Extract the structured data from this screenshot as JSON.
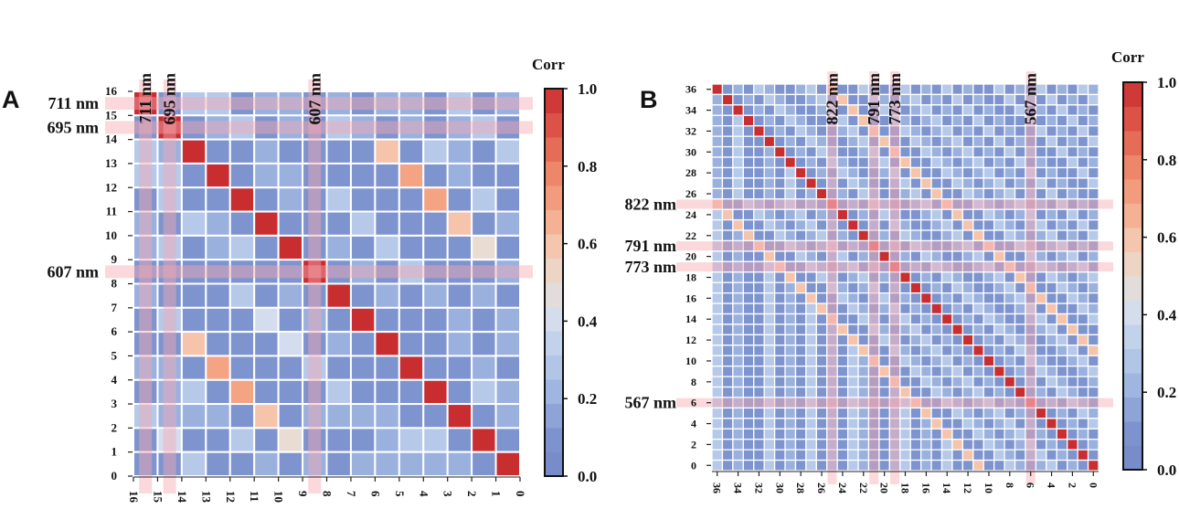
{
  "chart_data": [
    {
      "type": "heatmap",
      "panel_label": "A",
      "encoding": "digit = corr x 10, X = 1.0",
      "size": 16,
      "x_ticks": [
        "16",
        "15",
        "14",
        "13",
        "12",
        "11",
        "10",
        "9",
        "8",
        "7",
        "6",
        "5",
        "4",
        "3",
        "2",
        "1",
        "0"
      ],
      "y_ticks": [
        "0",
        "1",
        "2",
        "3",
        "4",
        "5",
        "6",
        "7",
        "8",
        "9",
        "10",
        "11",
        "12",
        "13",
        "14",
        "15",
        "16"
      ],
      "highlight_index": [
        0,
        1,
        7
      ],
      "highlight_labels": [
        "711 nm",
        "695 nm",
        "607 nm"
      ],
      "rows": [
        "X133122121221312",
        "1X12312132121231",
        "32X1121111613213",
        "331X122111171211",
        "1311X12131117131",
        "21321X1113111612",
        "231231X121311151",
        "1111111X12131112",
        "21113121X1212121",
        "131114121X111212",
        "1161114121X11212",
        "22171113111X1121",
        "123171113111X132",
        "3222161222211X12",
        "14113151112331X1",
        "113112121222221X"
      ],
      "colorbar": {
        "title": "Corr",
        "ticks": [
          "0.0",
          "0.2",
          "0.4",
          "0.6",
          "0.8",
          "1.0"
        ],
        "range": [
          0,
          1
        ]
      }
    },
    {
      "type": "heatmap",
      "panel_label": "B",
      "encoding": "digit = corr x 10, X = 1.0",
      "size": 37,
      "x_ticks": [
        "36",
        "34",
        "32",
        "30",
        "28",
        "26",
        "24",
        "22",
        "20",
        "18",
        "16",
        "14",
        "12",
        "10",
        "8",
        "6",
        "4",
        "2",
        "0"
      ],
      "y_ticks": [
        "0",
        "2",
        "4",
        "6",
        "8",
        "10",
        "12",
        "14",
        "16",
        "18",
        "20",
        "22",
        "24",
        "26",
        "28",
        "30",
        "32",
        "34",
        "36"
      ],
      "highlight_index": [
        11,
        15,
        17,
        30
      ],
      "highlight_labels": [
        "822 nm",
        "791 nm",
        "773 nm",
        "567 nm"
      ],
      "rows": [
        "X121321123161132123121312113121312132",
        "2X12132112316113212312131211312131213",
        "21X1213211231611321231213121131213121",
        "213X121321123161132123121312113121312",
        "2131X12132112316113212312131211312131",
        "21311X1213211231611321231213121131213",
        "213112X121321123161132123121312113121",
        "2131121X12132112316113212312131211312",
        "21311213X1213211231611321231213121131",
        "213112131X121321123161132123121312113",
        "2131121312X12132112316113212312131211",
        "61132123121X1213211231611321231213121",
        "361132123121X121321123161132123121312",
        "3161132123121X12132112316113212312131",
        "31261132123121X1213211231611321231213",
        "312161132123121X121321123161132123121",
        "3121161132123121X12132112316113212312",
        "31211361132123121X1213211231611321231",
        "312113161132123121X121321123161132123",
        "3121131261132123121X12132112316113212",
        "31211312161132123121X1213211231611321",
        "312113121361132123121X121321123161132",
        "3121131213161132123121X12132112316113",
        "31211312131261132123121X1213211231611",
        "312113121312161132123121X121321123161",
        "3121131213121361132123121X12132112316",
        "31211312131213261132123121X1213211231",
        "312113121312132161132123121X121321123",
        "3121131213121321161132123121X12132112",
        "31211312131213211261132123121X1213211",
        "312113121312132112361132123121X121321",
        "3121131213121321123161132123121X12132",
        "31211312131213211231261132123121X1213",
        "312113121312132112312161132123121X121",
        "3121131213121321123121361132123121X12",
        "31211312131213211231213161132123121X1",
        "312113121312132112312131161132123121X"
      ],
      "colorbar": {
        "title": "Corr",
        "ticks": [
          "0.0",
          "0.2",
          "0.4",
          "0.6",
          "0.8",
          "1.0"
        ],
        "range": [
          0,
          1
        ]
      }
    }
  ],
  "colormap": [
    {
      "v": 0.0,
      "c": "#7589c8"
    },
    {
      "v": 0.1,
      "c": "#7e94ce"
    },
    {
      "v": 0.2,
      "c": "#9ab1de"
    },
    {
      "v": 0.3,
      "c": "#b6c9e9"
    },
    {
      "v": 0.4,
      "c": "#d3ddee"
    },
    {
      "v": 0.5,
      "c": "#e9dcd2"
    },
    {
      "v": 0.6,
      "c": "#f5c4aa"
    },
    {
      "v": 0.7,
      "c": "#f4a383"
    },
    {
      "v": 0.8,
      "c": "#ec7f63"
    },
    {
      "v": 0.9,
      "c": "#dd5447"
    },
    {
      "v": 1.0,
      "c": "#c82d30"
    }
  ],
  "highlight_color": "#f7a8b2"
}
